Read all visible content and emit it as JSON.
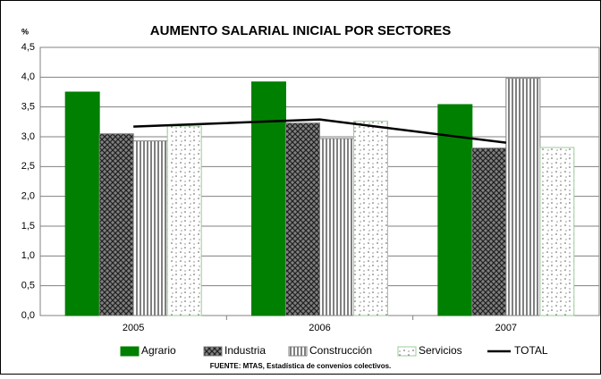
{
  "chart_data": {
    "type": "bar",
    "title": "AUMENTO SALARIAL INICIAL POR SECTORES",
    "ylabel": "%",
    "source": "FUENTE: MTAS, Estadística de convenios colectivos.",
    "categories": [
      "2005",
      "2006",
      "2007"
    ],
    "series": [
      {
        "name": "Agrario",
        "color": "#008000",
        "values": [
          3.75,
          3.92,
          3.54
        ]
      },
      {
        "name": "Industria",
        "color": "#808080",
        "values": [
          3.05,
          3.23,
          2.81
        ]
      },
      {
        "name": "Construcción",
        "color": "#ffffff",
        "values": [
          2.93,
          2.97,
          3.98
        ]
      },
      {
        "name": "Servicios",
        "color": "#99cc99",
        "values": [
          3.18,
          3.26,
          2.82
        ]
      },
      {
        "name": "TOTAL",
        "type": "line",
        "color": "#000000",
        "values": [
          3.17,
          3.29,
          2.9
        ]
      }
    ],
    "ylim": [
      0,
      4.5
    ],
    "yticks": [
      {
        "value": 0,
        "label": "0,0"
      },
      {
        "value": 0.5,
        "label": "0,5"
      },
      {
        "value": 1,
        "label": "1,0"
      },
      {
        "value": 1.5,
        "label": "1,5"
      },
      {
        "value": 2,
        "label": "2,0"
      },
      {
        "value": 2.5,
        "label": "2,5"
      },
      {
        "value": 3,
        "label": "3,0"
      },
      {
        "value": 3.5,
        "label": "3,5"
      },
      {
        "value": 4,
        "label": "4,0"
      },
      {
        "value": 4.5,
        "label": "4,5"
      }
    ],
    "grid": true
  }
}
